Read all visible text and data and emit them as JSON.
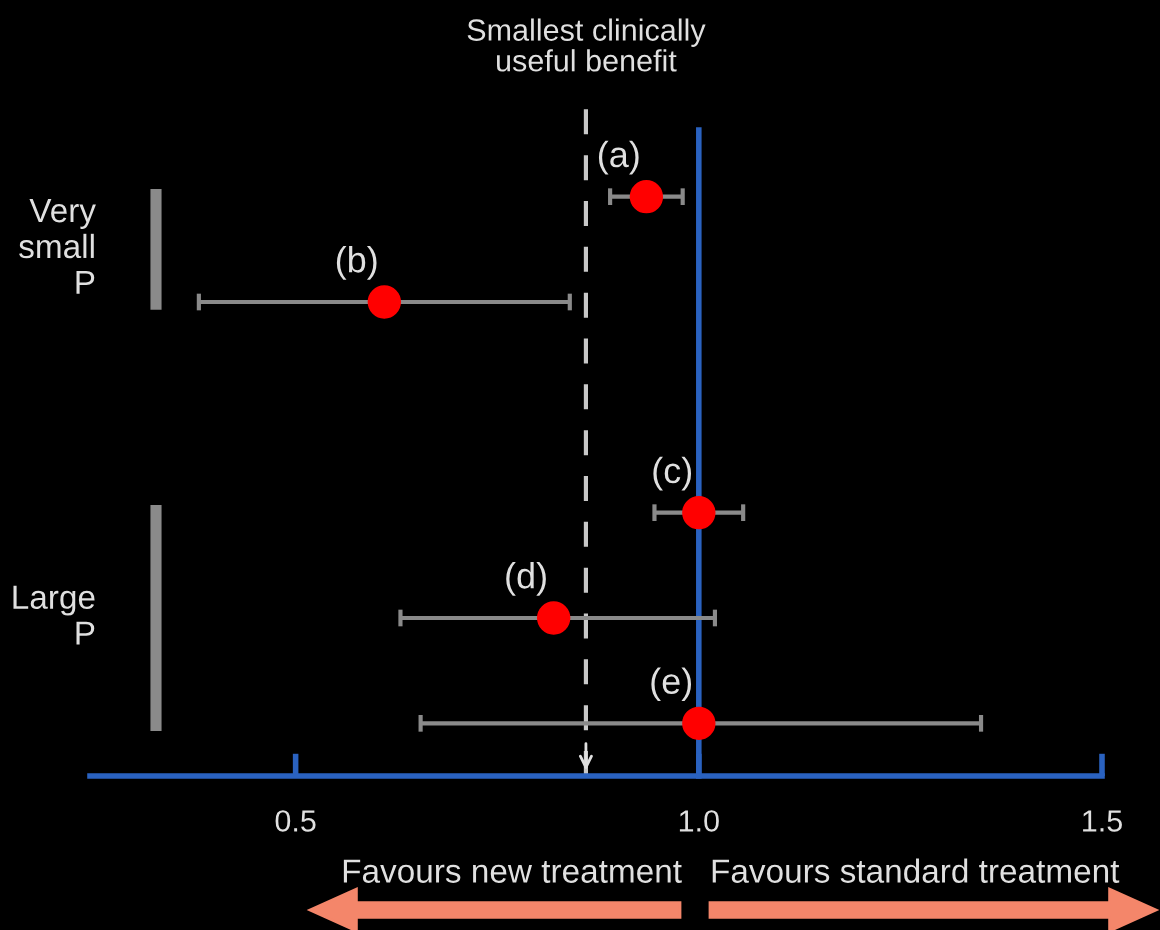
{
  "chart_data": {
    "type": "scatter",
    "orientation": "horizontal",
    "categories": [
      null,
      null,
      null,
      null,
      null,
      null
    ],
    "values": [
      0.935,
      0.61,
      null,
      1.0,
      0.82,
      1.0
    ],
    "value_labels": [
      "(a)",
      "(b)",
      null,
      "(c)",
      "(d)",
      "(e)"
    ],
    "errors": [
      [
        0.89,
        0.98
      ],
      [
        0.38,
        0.84
      ],
      null,
      [
        0.945,
        1.055
      ],
      [
        0.63,
        1.02
      ],
      [
        0.655,
        1.35
      ]
    ],
    "color": "#ff0000",
    "marker": "circle",
    "xlim": [
      0.245,
      1.5
    ],
    "xticks": [
      0.5,
      {
        "value": 1.0,
        "label": "1.0"
      },
      1.5
    ],
    "tick_labels": "x",
    "grid": false,
    "legend": false,
    "ref_lines": [
      {
        "axis": "x",
        "value": 0.86,
        "label": "Smallest clinically\nuseful benefit",
        "color": "#c8c8c8",
        "line_style": "dashed"
      },
      {
        "axis": "x",
        "value": 1.0,
        "label": null,
        "color": "#2a62c0",
        "line_style": "solid"
      }
    ],
    "annotations": [
      "Very small P",
      "Large P",
      "Favours new treatment",
      "Favours standard treatment"
    ]
  }
}
